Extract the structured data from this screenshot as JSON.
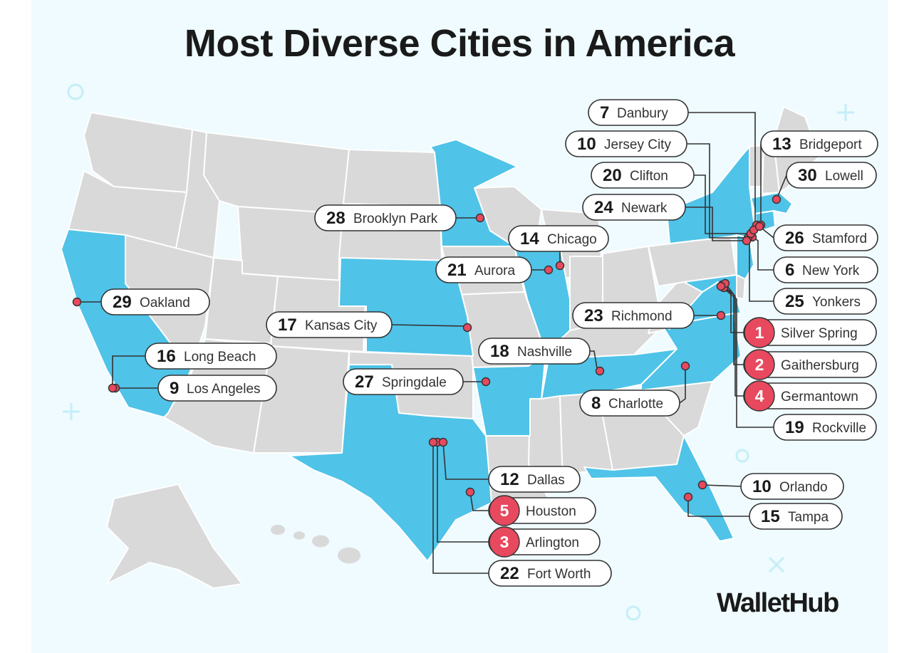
{
  "title": "Most Diverse Cities in America",
  "brand": "WalletHub",
  "colors": {
    "background": "#effbfe",
    "highlighted_state": "#4fc3e8",
    "other_state": "#d9d9d9",
    "marker": "#e8495e",
    "pill_border": "#333333"
  },
  "legend_note": "",
  "highlighted_states": [
    "California",
    "Minnesota",
    "Kansas",
    "Illinois",
    "Texas",
    "Arkansas",
    "Tennessee",
    "North Carolina",
    "Florida",
    "Virginia",
    "Maryland",
    "New Jersey",
    "New York",
    "Connecticut",
    "Massachusetts"
  ],
  "cities": [
    {
      "rank": "1",
      "name": "Silver Spring",
      "top5": true
    },
    {
      "rank": "2",
      "name": "Gaithersburg",
      "top5": true
    },
    {
      "rank": "3",
      "name": "Arlington",
      "top5": true
    },
    {
      "rank": "4",
      "name": "Germantown",
      "top5": true
    },
    {
      "rank": "5",
      "name": "Houston",
      "top5": true
    },
    {
      "rank": "6",
      "name": "New York",
      "top5": false
    },
    {
      "rank": "7",
      "name": "Danbury",
      "top5": false
    },
    {
      "rank": "8",
      "name": "Charlotte",
      "top5": false
    },
    {
      "rank": "9",
      "name": "Los Angeles",
      "top5": false
    },
    {
      "rank": "10",
      "name": "Jersey City",
      "top5": false
    },
    {
      "rank": "10",
      "name": "Orlando",
      "top5": false
    },
    {
      "rank": "12",
      "name": "Dallas",
      "top5": false
    },
    {
      "rank": "13",
      "name": "Bridgeport",
      "top5": false
    },
    {
      "rank": "14",
      "name": "Chicago",
      "top5": false
    },
    {
      "rank": "15",
      "name": "Tampa",
      "top5": false
    },
    {
      "rank": "16",
      "name": "Long Beach",
      "top5": false
    },
    {
      "rank": "17",
      "name": "Kansas City",
      "top5": false
    },
    {
      "rank": "18",
      "name": "Nashville",
      "top5": false
    },
    {
      "rank": "19",
      "name": "Rockville",
      "top5": false
    },
    {
      "rank": "20",
      "name": "Clifton",
      "top5": false
    },
    {
      "rank": "21",
      "name": "Aurora",
      "top5": false
    },
    {
      "rank": "22",
      "name": "Fort Worth",
      "top5": false
    },
    {
      "rank": "23",
      "name": "Richmond",
      "top5": false
    },
    {
      "rank": "24",
      "name": "Newark",
      "top5": false
    },
    {
      "rank": "25",
      "name": "Yonkers",
      "top5": false
    },
    {
      "rank": "26",
      "name": "Stamford",
      "top5": false
    },
    {
      "rank": "27",
      "name": "Springdale",
      "top5": false
    },
    {
      "rank": "28",
      "name": "Brooklyn Park",
      "top5": false
    },
    {
      "rank": "29",
      "name": "Oakland",
      "top5": false
    },
    {
      "rank": "30",
      "name": "Lowell",
      "top5": false
    }
  ]
}
